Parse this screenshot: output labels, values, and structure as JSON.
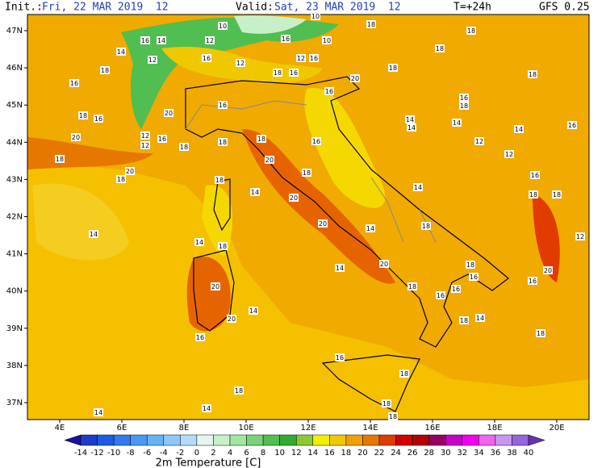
{
  "header": {
    "init_label": "Init.:",
    "init_time": "Fri, 22 MAR 2019  12",
    "valid_label": "Valid:",
    "valid_time": "Sat, 23 MAR 2019  12",
    "lead_time": "T=+24h",
    "model": "GFS 0.25"
  },
  "lat_labels": [
    "47N",
    "46N",
    "45N",
    "44N",
    "43N",
    "42N",
    "41N",
    "40N",
    "39N",
    "38N",
    "37N"
  ],
  "lon_labels": [
    "4E",
    "6E",
    "8E",
    "10E",
    "12E",
    "14E",
    "16E",
    "18E",
    "20E"
  ],
  "map_labels": [
    "10",
    "10",
    "16",
    "14",
    "14",
    "12",
    "18",
    "16",
    "12",
    "16",
    "10",
    "18",
    "12",
    "16",
    "12",
    "16",
    "18",
    "18",
    "18",
    "18",
    "18",
    "16",
    "20",
    "16",
    "16",
    "20",
    "18",
    "16",
    "12",
    "12",
    "16",
    "18",
    "20",
    "18",
    "20",
    "18",
    "18",
    "18",
    "20",
    "16",
    "18",
    "16",
    "18",
    "14",
    "14",
    "14",
    "14",
    "16",
    "12",
    "12",
    "16",
    "18",
    "18",
    "12",
    "20",
    "16",
    "14",
    "20",
    "18",
    "14",
    "20",
    "14",
    "14",
    "14",
    "18",
    "14",
    "20",
    "18",
    "18",
    "16",
    "16",
    "18",
    "16",
    "20",
    "14",
    "20",
    "16",
    "18",
    "14",
    "18",
    "16",
    "18",
    "18",
    "18",
    "18",
    "14",
    "14"
  ],
  "colorbar": {
    "labels": [
      "-14",
      "-12",
      "-10",
      "-8",
      "-6",
      "-4",
      "-2",
      "0",
      "2",
      "4",
      "6",
      "8",
      "10",
      "12",
      "14",
      "16",
      "18",
      "20",
      "22",
      "24",
      "26",
      "28",
      "30",
      "32",
      "34",
      "36",
      "38",
      "40"
    ],
    "title": "2m Temperature [C]"
  }
}
